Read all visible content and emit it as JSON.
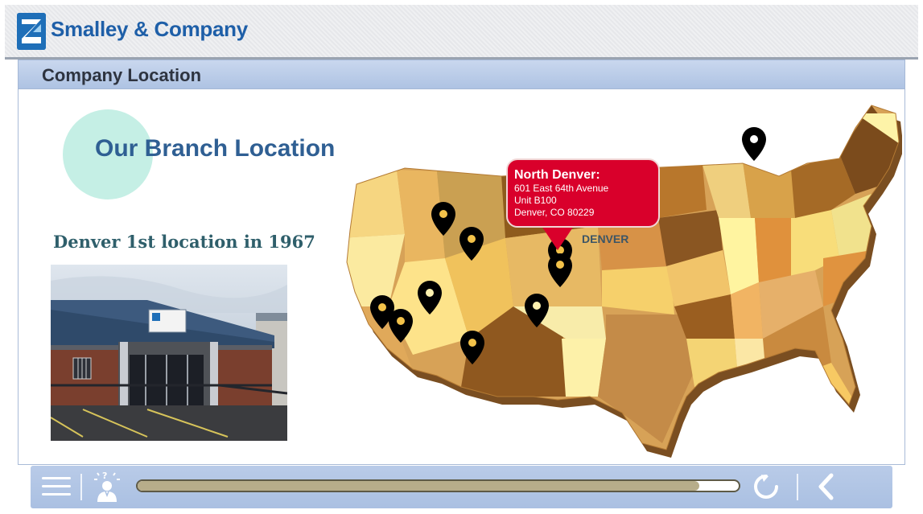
{
  "header": {
    "company_name": "Smalley & Company",
    "logo_icon": "smalley-logo-icon"
  },
  "page": {
    "title": "Company Location"
  },
  "content": {
    "heading": "Our Branch Location",
    "photo_caption": "Denver 1st location in 1967",
    "photo_subject": "branch-building-photo"
  },
  "map": {
    "highlight_label": "DENVER",
    "tooltip": {
      "title": "North Denver:",
      "address_line1": "601 East 64th Avenue",
      "address_line2": "Unit B100",
      "address_line3": "Denver, CO 80229"
    },
    "pin_count": 10
  },
  "toolbar": {
    "menu_icon": "hamburger-menu-icon",
    "help_icon": "help-person-icon",
    "replay_icon": "replay-icon",
    "back_icon": "chevron-left-icon",
    "progress_fraction": 0.935
  },
  "colors": {
    "brand_blue": "#1e5fa8",
    "tooltip_red": "#d9002b",
    "heading_blue": "#2f5f93",
    "circle_mint": "#c5efe5"
  }
}
